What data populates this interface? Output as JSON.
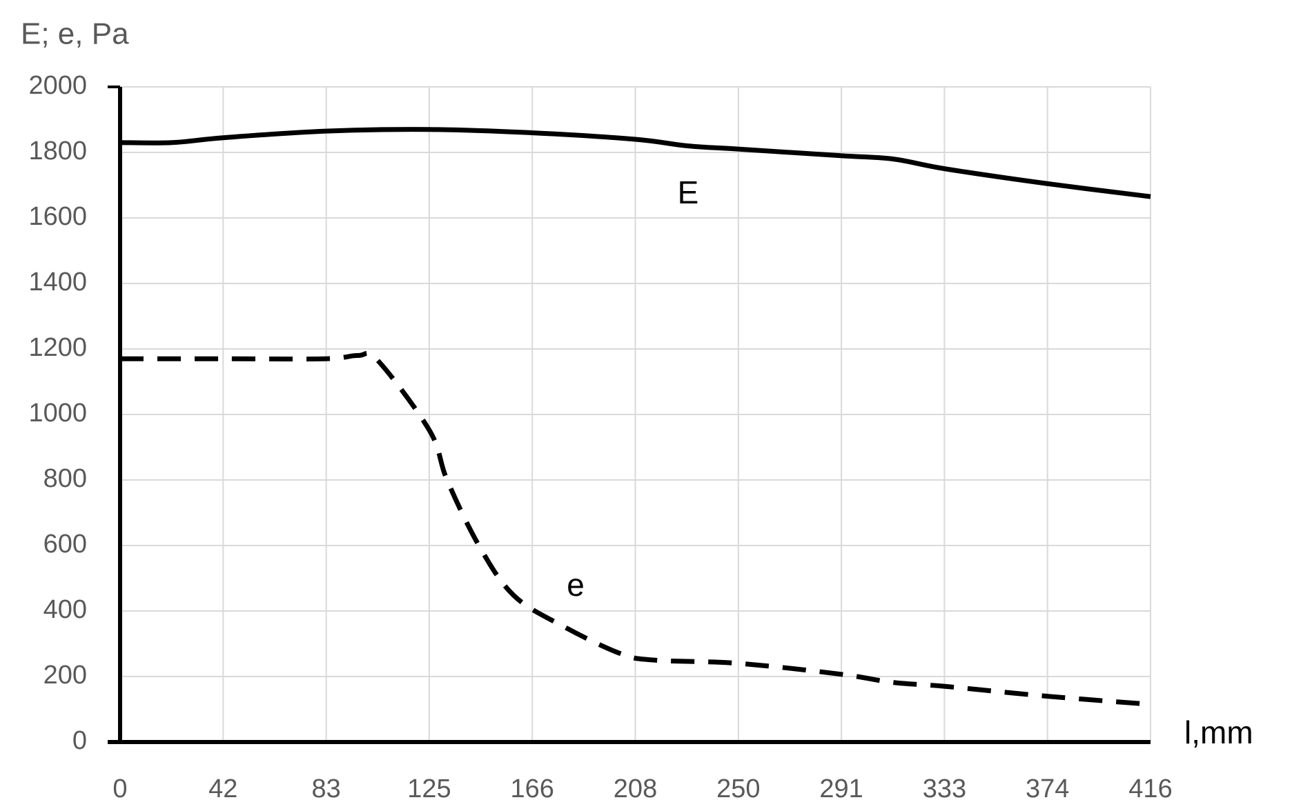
{
  "chart_data": {
    "type": "line",
    "y_label": "E; e, Pa",
    "x_label": "l,mm",
    "xlim": [
      0,
      416
    ],
    "ylim": [
      0,
      2000
    ],
    "xticks": [
      0,
      {
        "value": 41.6,
        "label": "42"
      },
      {
        "value": 83.2,
        "label": "83"
      },
      {
        "value": 124.8,
        "label": "125"
      },
      {
        "value": 166.4,
        "label": "166"
      },
      208,
      {
        "value": 249.6,
        "label": "250"
      },
      {
        "value": 291.2,
        "label": "291"
      },
      {
        "value": 332.8,
        "label": "333"
      },
      {
        "value": 374.4,
        "label": "374"
      },
      416
    ],
    "yticks": [
      0,
      200,
      400,
      600,
      800,
      1000,
      1200,
      1400,
      1600,
      1800,
      2000
    ],
    "grid": true,
    "series": [
      {
        "name": "E",
        "color": "#000000",
        "dashed": false,
        "x": [
          0,
          21,
          42,
          83,
          125,
          166,
          208,
          229,
          250,
          291,
          312,
          333,
          374,
          416
        ],
        "values": [
          1830,
          1830,
          1845,
          1865,
          1870,
          1860,
          1840,
          1820,
          1810,
          1790,
          1780,
          1750,
          1705,
          1665
        ]
      },
      {
        "name": "e",
        "color": "#000000",
        "dashed": true,
        "x": [
          0,
          42,
          83,
          96,
          104,
          125,
          132,
          145,
          159,
          179,
          202,
          216,
          250,
          291,
          312,
          333,
          374,
          416
        ],
        "values": [
          1170,
          1170,
          1170,
          1180,
          1165,
          950,
          800,
          598,
          447,
          353,
          270,
          250,
          240,
          207,
          182,
          170,
          140,
          115
        ]
      }
    ]
  }
}
